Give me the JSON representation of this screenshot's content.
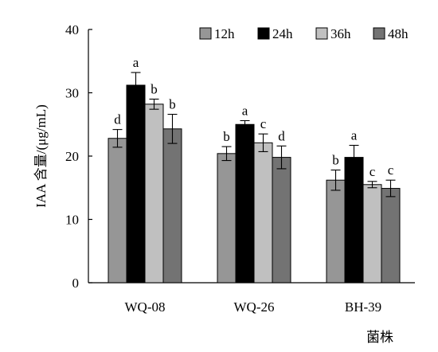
{
  "chart_data": {
    "type": "bar",
    "ylabel": "IAA 含量/(μg/mL)",
    "xlabel": "菌株",
    "ylim": [
      0,
      40
    ],
    "yticks": [
      0,
      10,
      20,
      30,
      40
    ],
    "legend_position": "top-right",
    "categories": [
      "WQ-08",
      "WQ-26",
      "BH-39"
    ],
    "series": [
      {
        "name": "12h",
        "color": "#969696",
        "values": [
          22.8,
          20.4,
          16.2
        ],
        "errors": [
          1.4,
          1.1,
          1.6
        ],
        "letters": [
          "d",
          "b",
          "b"
        ]
      },
      {
        "name": "24h",
        "color": "#000000",
        "values": [
          31.2,
          25.0,
          19.8
        ],
        "errors": [
          2.0,
          0.6,
          1.9
        ],
        "letters": [
          "a",
          "a",
          "a"
        ]
      },
      {
        "name": "36h",
        "color": "#c0c0c0",
        "values": [
          28.2,
          22.1,
          15.5
        ],
        "errors": [
          0.8,
          1.4,
          0.5
        ],
        "letters": [
          "b",
          "c",
          "c"
        ]
      },
      {
        "name": "48h",
        "color": "#737373",
        "values": [
          24.3,
          19.8,
          14.9
        ],
        "errors": [
          2.3,
          1.8,
          1.3
        ],
        "letters": [
          "b",
          "d",
          "c"
        ]
      }
    ]
  }
}
